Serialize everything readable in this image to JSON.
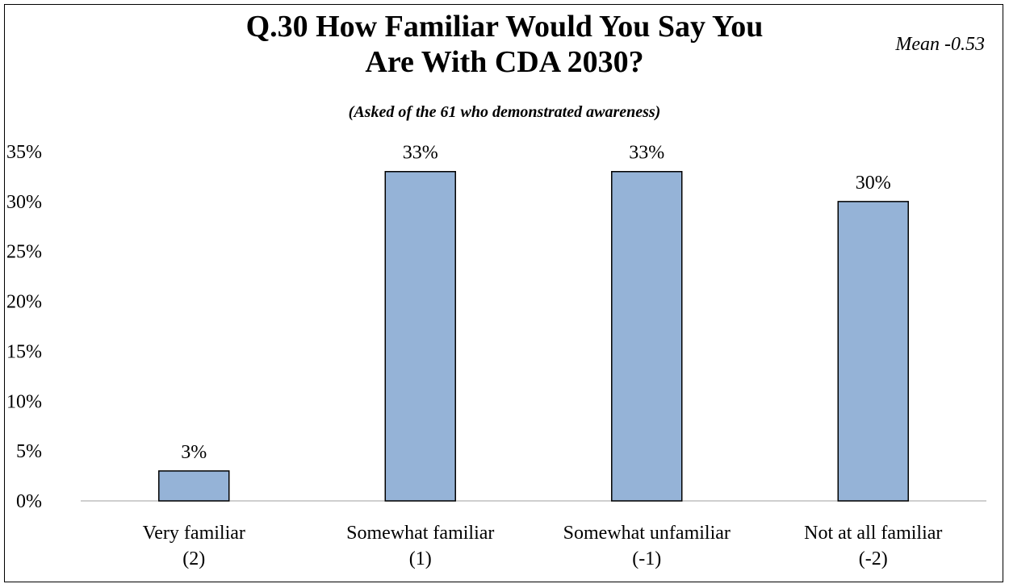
{
  "chart_data": {
    "type": "bar",
    "title_line1": "Q.30 How Familiar Would You Say You",
    "title_line2": "Are With CDA 2030?",
    "subtitle": "(Asked of the 61 who demonstrated awareness)",
    "annotation": "Mean -0.53",
    "categories": [
      [
        "Very familiar",
        "(2)"
      ],
      [
        "Somewhat familiar",
        "(1)"
      ],
      [
        "Somewhat unfamiliar",
        "(-1)"
      ],
      [
        "Not at all familiar",
        "(-2)"
      ]
    ],
    "values": [
      3,
      33,
      33,
      30
    ],
    "data_labels": [
      "3%",
      "33%",
      "33%",
      "30%"
    ],
    "ylim": [
      0,
      35
    ],
    "yticks": [
      0,
      5,
      10,
      15,
      20,
      25,
      30,
      35
    ],
    "ytick_labels": [
      "0%",
      "5%",
      "10%",
      "15%",
      "20%",
      "25%",
      "30%",
      "35%"
    ],
    "grid": false,
    "legend": "none",
    "bar_color": "#95B3D7",
    "bar_border": "#000000"
  }
}
